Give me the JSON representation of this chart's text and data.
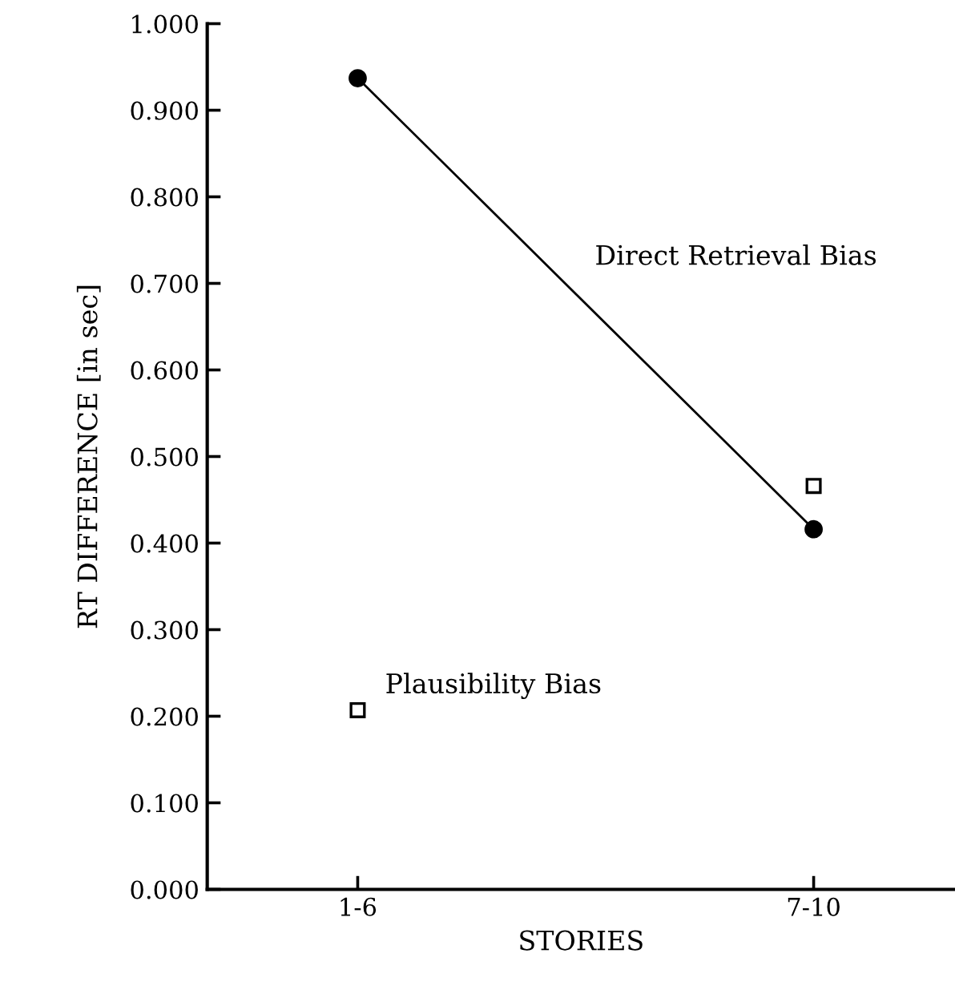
{
  "chart_data": {
    "type": "line",
    "xlabel": "STORIES",
    "ylabel": "RT DIFFERENCE [in sec]",
    "categories": [
      "1-6",
      "7-10"
    ],
    "series": [
      {
        "name": "Direct Retrieval Bias",
        "type": "line",
        "color": "#000000",
        "marker": "circle",
        "values": [
          0.937,
          0.416
        ]
      },
      {
        "name": "Plausibility Bias",
        "type": "scatter",
        "color": "#000000",
        "marker": "square",
        "values": [
          0.207,
          0.466
        ]
      }
    ],
    "ylim": [
      0,
      1
    ],
    "yticks": [
      {
        "value": 0,
        "label": "0.000"
      },
      {
        "value": 0.1,
        "label": "0.100"
      },
      {
        "value": 0.2,
        "label": "0.200"
      },
      {
        "value": 0.3,
        "label": "0.300"
      },
      {
        "value": 0.4,
        "label": "0.400"
      },
      {
        "value": 0.5,
        "label": "0.500"
      },
      {
        "value": 0.6,
        "label": "0.600"
      },
      {
        "value": 0.7,
        "label": "0.700"
      },
      {
        "value": 0.8,
        "label": "0.800"
      },
      {
        "value": 0.9,
        "label": "0.900"
      },
      {
        "value": 1,
        "label": "1.000"
      }
    ],
    "grid": false,
    "legend": false
  }
}
